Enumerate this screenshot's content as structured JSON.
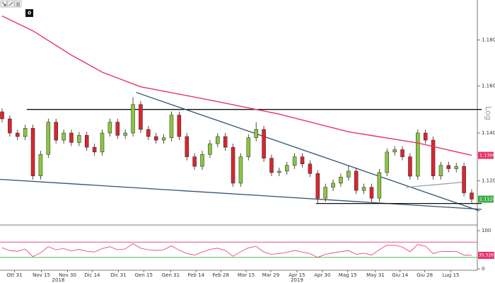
{
  "toolbar": {
    "badge": "0"
  },
  "chart_data": {
    "type": "candlestick",
    "log_scale": true,
    "scale_label": "Log",
    "open": [
      1.149,
      1.146,
      1.14,
      1.1385,
      1.142,
      1.122,
      1.131,
      1.1446,
      1.137,
      1.14,
      1.136,
      1.139,
      1.134,
      1.132,
      1.14,
      1.1446,
      1.139,
      1.14,
      1.1521,
      1.1415,
      1.1385,
      1.137,
      1.138,
      1.1476,
      1.1385,
      1.13,
      1.126,
      1.131,
      1.1355,
      1.1385,
      1.134,
      1.119,
      1.13,
      1.138,
      1.1415,
      1.1294,
      1.1234,
      1.124,
      1.1264,
      1.13,
      1.127,
      1.123,
      1.1128,
      1.1173,
      1.119,
      1.1215,
      1.124,
      1.116,
      1.1173,
      1.1128,
      1.1234,
      1.132,
      1.133,
      1.13,
      1.1219,
      1.14,
      1.137,
      1.122,
      1.1264,
      1.125,
      1.126,
      1.115
    ],
    "high": [
      1.1505,
      1.1475,
      1.1415,
      1.1435,
      1.1435,
      1.1325,
      1.1461,
      1.1461,
      1.1415,
      1.1415,
      1.1405,
      1.1405,
      1.1355,
      1.1415,
      1.1461,
      1.1461,
      1.1415,
      1.1552,
      1.1536,
      1.143,
      1.14,
      1.1395,
      1.1491,
      1.1491,
      1.14,
      1.1315,
      1.1325,
      1.137,
      1.14,
      1.14,
      1.1355,
      1.1315,
      1.1395,
      1.1446,
      1.143,
      1.1309,
      1.1255,
      1.1279,
      1.1315,
      1.1315,
      1.1285,
      1.1245,
      1.1188,
      1.1205,
      1.123,
      1.1264,
      1.1255,
      1.1188,
      1.1188,
      1.1249,
      1.1335,
      1.1345,
      1.1345,
      1.1315,
      1.1415,
      1.1415,
      1.1385,
      1.1279,
      1.1279,
      1.1275,
      1.1275,
      1.1165
    ],
    "low": [
      1.1445,
      1.1385,
      1.137,
      1.137,
      1.1205,
      1.1205,
      1.1295,
      1.1355,
      1.1355,
      1.1345,
      1.1345,
      1.1325,
      1.1305,
      1.1305,
      1.1385,
      1.1375,
      1.1375,
      1.1385,
      1.14,
      1.137,
      1.1355,
      1.1355,
      1.1365,
      1.137,
      1.1285,
      1.1245,
      1.1245,
      1.1295,
      1.134,
      1.1325,
      1.1175,
      1.1175,
      1.1285,
      1.1365,
      1.1279,
      1.1219,
      1.1219,
      1.1225,
      1.1249,
      1.1255,
      1.1215,
      1.1107,
      1.1113,
      1.1158,
      1.1175,
      1.12,
      1.1145,
      1.1145,
      1.1113,
      1.1113,
      1.1219,
      1.1305,
      1.1285,
      1.1204,
      1.1204,
      1.1355,
      1.1205,
      1.1205,
      1.1235,
      1.1235,
      1.1135,
      1.1109
    ],
    "close": [
      1.146,
      1.14,
      1.1385,
      1.142,
      1.122,
      1.131,
      1.1446,
      1.137,
      1.14,
      1.136,
      1.139,
      1.134,
      1.132,
      1.14,
      1.1446,
      1.139,
      1.14,
      1.1521,
      1.1415,
      1.1385,
      1.137,
      1.138,
      1.1476,
      1.1385,
      1.13,
      1.126,
      1.131,
      1.1355,
      1.1385,
      1.134,
      1.119,
      1.13,
      1.138,
      1.1415,
      1.1294,
      1.1234,
      1.124,
      1.1264,
      1.13,
      1.127,
      1.123,
      1.1128,
      1.1173,
      1.119,
      1.1215,
      1.124,
      1.116,
      1.1173,
      1.1128,
      1.1234,
      1.132,
      1.133,
      1.13,
      1.1219,
      1.14,
      1.137,
      1.122,
      1.1264,
      1.125,
      1.126,
      1.115,
      1.1124
    ],
    "up_color": "#8cc63f",
    "down_color": "#d9262e",
    "moving_average": {
      "color": "#e8336a",
      "x": [
        0,
        4,
        9,
        13,
        18,
        27,
        36,
        45,
        54,
        61
      ],
      "values": [
        1.1905,
        1.184,
        1.1734,
        1.166,
        1.1597,
        1.154,
        1.148,
        1.1405,
        1.1358,
        1.1306
      ]
    },
    "trendlines": [
      {
        "color": "#111111",
        "x": [
          3.2,
          62.3
        ],
        "y": [
          1.15,
          1.15
        ]
      },
      {
        "color": "#34506e",
        "x": [
          17.4,
          62.0
        ],
        "y": [
          1.1573,
          1.1076
        ]
      },
      {
        "color": "#34506e",
        "x": [
          -0.3,
          62.3
        ],
        "y": [
          1.1206,
          1.1082
        ]
      },
      {
        "color": "#111111",
        "x": [
          40.8,
          62.3
        ],
        "y": [
          1.1106,
          1.1106
        ]
      },
      {
        "color": "#9aa3ad",
        "x": [
          52.5,
          59.8
        ],
        "y": [
          1.1173,
          1.1194
        ]
      }
    ],
    "price_boxes": [
      {
        "value": 1.1306,
        "color": "#e8336a"
      },
      {
        "value": 1.1124,
        "color": "#3fae49"
      }
    ],
    "ylim": [
      1.1018,
      1.1976
    ],
    "yticks": [
      {
        "value": 1.12,
        "label": "1.1200"
      },
      {
        "value": 1.14,
        "label": "1.1400"
      },
      {
        "value": 1.16,
        "label": "1.1600"
      },
      {
        "value": 1.18,
        "label": "1.1800"
      }
    ],
    "xticks": [
      {
        "value": 1.6,
        "label": "Ott 31"
      },
      {
        "value": 5.1,
        "label": "Nov 15"
      },
      {
        "value": 8.5,
        "label": "Nov 30"
      },
      {
        "value": 11.7,
        "label": "Dic 14"
      },
      {
        "value": 15.1,
        "label": "Dic 31"
      },
      {
        "value": 18.4,
        "label": "Gen 15"
      },
      {
        "value": 21.9,
        "label": "Gen 31"
      },
      {
        "value": 25.2,
        "label": "Feb 14"
      },
      {
        "value": 28.4,
        "label": "Feb 28"
      },
      {
        "value": 31.7,
        "label": "Mar 15"
      },
      {
        "value": 34.9,
        "label": "Mar 29"
      },
      {
        "value": 38.3,
        "label": "Apr 15"
      },
      {
        "value": 41.6,
        "label": "Apr 30"
      },
      {
        "value": 44.9,
        "label": "Mag 15"
      },
      {
        "value": 48.5,
        "label": "May 31"
      },
      {
        "value": 51.7,
        "label": "Giu 14"
      },
      {
        "value": 54.9,
        "label": "Giu 28"
      },
      {
        "value": 58.3,
        "label": "Lug 15"
      }
    ],
    "year_labels": [
      {
        "value": 7.3,
        "label": "2018"
      },
      {
        "value": 38.3,
        "label": "2019"
      }
    ],
    "rsi": {
      "color": "#e8336a",
      "values": [
        55,
        48,
        46,
        52,
        32,
        42,
        58,
        50,
        53,
        47,
        51,
        46,
        44,
        53,
        58,
        50,
        52,
        66,
        54,
        50,
        48,
        50,
        60,
        49,
        40,
        36,
        44,
        51,
        54,
        48,
        33,
        45,
        55,
        59,
        44,
        38,
        40,
        43,
        48,
        44,
        40,
        30,
        38,
        42,
        45,
        48,
        38,
        41,
        36,
        50,
        62,
        62,
        57,
        45,
        64,
        59,
        40,
        46,
        45,
        46,
        36,
        35.3263
      ],
      "ylim": [
        0,
        100
      ],
      "yticks": [
        0,
        100
      ],
      "levels": [
        {
          "value": 70,
          "color": "#e8336a"
        },
        {
          "value": 30,
          "color": "#3fae49"
        }
      ]
    }
  }
}
